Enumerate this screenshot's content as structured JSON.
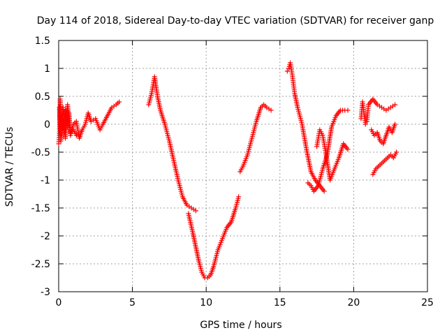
{
  "chart_data": {
    "type": "scatter",
    "title": "Day 114 of 2018, Sidereal Day-to-day VTEC variation (SDTVAR) for receiver ganp",
    "xlabel": "GPS time / hours",
    "ylabel": "SDTVAR / TECUs",
    "xlim": [
      0,
      25
    ],
    "ylim": [
      -3,
      1.5
    ],
    "xticks": [
      0,
      5,
      10,
      15,
      20,
      25
    ],
    "xtick_labels": [
      "0",
      "5",
      "10",
      "15",
      "20",
      "25"
    ],
    "yticks": [
      1.5,
      1,
      0.5,
      0,
      -0.5,
      -1,
      -1.5,
      -2,
      -2.5,
      -3
    ],
    "ytick_labels": [
      "1.5",
      "1",
      "0.5",
      "0",
      "-0.5",
      "-1",
      "-1.5",
      "-2",
      "-2.5",
      "-3"
    ],
    "grid": true,
    "marker": "+",
    "series": [
      {
        "name": "SDTVAR",
        "color": "#ff0000",
        "segments": [
          {
            "x": [
              0.0,
              0.05,
              0.1,
              0.15,
              0.2,
              0.3,
              0.4,
              0.5,
              0.6,
              0.7,
              0.8,
              0.9,
              1.0,
              1.2,
              1.4,
              1.6,
              1.8,
              2.0,
              2.2,
              2.5,
              2.8,
              3.0,
              3.3,
              3.6,
              3.9,
              4.1
            ],
            "y": [
              -0.35,
              -0.2,
              0.45,
              0.1,
              -0.1,
              0.3,
              -0.15,
              0.25,
              -0.05,
              0.2,
              -0.2,
              -0.1,
              0.0,
              0.05,
              -0.25,
              -0.1,
              0.0,
              0.2,
              0.05,
              0.1,
              -0.1,
              0.0,
              0.15,
              0.3,
              0.35,
              0.4
            ]
          },
          {
            "x": [
              0.05,
              0.15,
              0.3,
              0.45,
              0.6,
              0.8,
              1.0,
              1.2
            ],
            "y": [
              0.3,
              -0.3,
              0.05,
              -0.25,
              0.35,
              -0.15,
              -0.1,
              -0.2
            ]
          },
          {
            "x": [
              6.1,
              6.3,
              6.5,
              6.7,
              6.9,
              7.2,
              7.5,
              7.8,
              8.1,
              8.4,
              8.7,
              9.0,
              9.3
            ],
            "y": [
              0.35,
              0.55,
              0.85,
              0.5,
              0.25,
              0.0,
              -0.3,
              -0.65,
              -1.0,
              -1.3,
              -1.45,
              -1.5,
              -1.55
            ]
          },
          {
            "x": [
              8.8,
              9.1,
              9.3,
              9.5,
              9.7,
              9.9,
              10.1,
              10.3,
              10.5,
              10.8,
              11.1,
              11.4,
              11.7,
              12.0,
              12.2
            ],
            "y": [
              -1.6,
              -1.95,
              -2.2,
              -2.45,
              -2.65,
              -2.75,
              -2.75,
              -2.7,
              -2.55,
              -2.25,
              -2.05,
              -1.85,
              -1.75,
              -1.5,
              -1.3
            ]
          },
          {
            "x": [
              12.3,
              12.5,
              12.8,
              13.1,
              13.4,
              13.7,
              13.9,
              14.1,
              14.4
            ],
            "y": [
              -0.85,
              -0.75,
              -0.55,
              -0.25,
              0.05,
              0.3,
              0.35,
              0.3,
              0.25
            ]
          },
          {
            "x": [
              15.5,
              15.6,
              15.7,
              15.8,
              16.0,
              16.2,
              16.5,
              16.8,
              17.1,
              17.4,
              17.7,
              18.0
            ],
            "y": [
              0.95,
              1.0,
              1.1,
              0.95,
              0.55,
              0.3,
              0.0,
              -0.45,
              -0.85,
              -1.0,
              -1.1,
              -1.2
            ]
          },
          {
            "x": [
              16.9,
              17.1,
              17.3,
              17.6,
              17.9,
              18.2,
              18.5,
              18.8,
              19.1,
              19.4,
              19.6
            ],
            "y": [
              -1.05,
              -1.1,
              -1.2,
              -1.1,
              -0.8,
              -0.55,
              -0.05,
              0.15,
              0.25,
              0.25,
              0.25
            ]
          },
          {
            "x": [
              17.5,
              17.7,
              17.9,
              18.1,
              18.4,
              18.7,
              19.0,
              19.3,
              19.6
            ],
            "y": [
              -0.4,
              -0.1,
              -0.2,
              -0.5,
              -1.0,
              -0.8,
              -0.6,
              -0.35,
              -0.45
            ]
          },
          {
            "x": [
              20.5,
              20.6,
              20.7,
              20.8,
              20.9,
              21.0,
              21.3,
              21.6,
              21.9,
              22.2,
              22.5,
              22.8
            ],
            "y": [
              0.1,
              0.4,
              0.2,
              0.0,
              0.05,
              0.35,
              0.45,
              0.35,
              0.3,
              0.25,
              0.3,
              0.35
            ]
          },
          {
            "x": [
              21.2,
              21.4,
              21.6,
              21.8,
              22.0,
              22.2,
              22.4,
              22.6,
              22.8
            ],
            "y": [
              -0.1,
              -0.2,
              -0.15,
              -0.3,
              -0.35,
              -0.2,
              -0.05,
              -0.15,
              0.0
            ]
          },
          {
            "x": [
              21.3,
              21.5,
              21.7,
              21.9,
              22.1,
              22.3,
              22.5,
              22.7,
              22.9
            ],
            "y": [
              -0.9,
              -0.8,
              -0.75,
              -0.7,
              -0.65,
              -0.6,
              -0.55,
              -0.6,
              -0.5
            ]
          }
        ]
      }
    ]
  }
}
